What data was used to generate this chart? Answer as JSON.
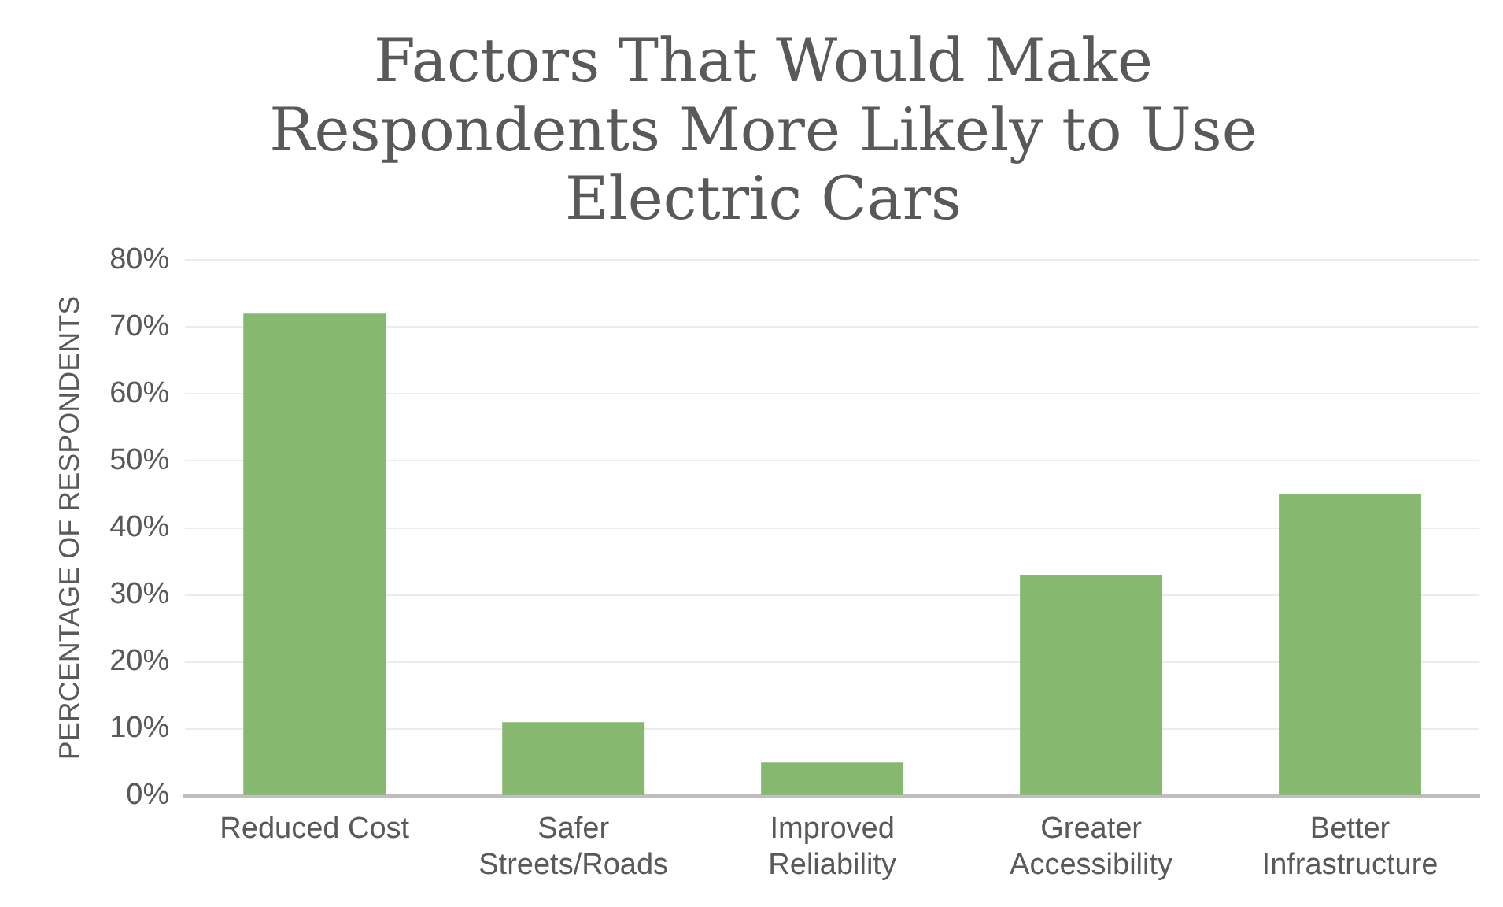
{
  "chart_data": {
    "type": "bar",
    "title": "Factors That Would Make Respondents More Likely to Use Electric Cars",
    "ylabel": "PERCENTAGE OF RESPONDENTS",
    "categories": [
      "Reduced Cost",
      "Safer Streets/Roads",
      "Improved Reliability",
      "Greater Accessibility",
      "Better Infrastructure"
    ],
    "values": [
      72,
      11,
      5,
      33,
      45
    ],
    "color": "#86b86f",
    "ylim": [
      0,
      80
    ],
    "yticks": [
      {
        "value": 0,
        "label": "0%"
      },
      {
        "value": 10,
        "label": "10%"
      },
      {
        "value": 20,
        "label": "20%"
      },
      {
        "value": 30,
        "label": "30%"
      },
      {
        "value": 40,
        "label": "40%"
      },
      {
        "value": 50,
        "label": "50%"
      },
      {
        "value": 60,
        "label": "60%"
      },
      {
        "value": 70,
        "label": "70%"
      },
      {
        "value": 80,
        "label": "80%"
      }
    ],
    "grid": "y",
    "legend": false
  }
}
